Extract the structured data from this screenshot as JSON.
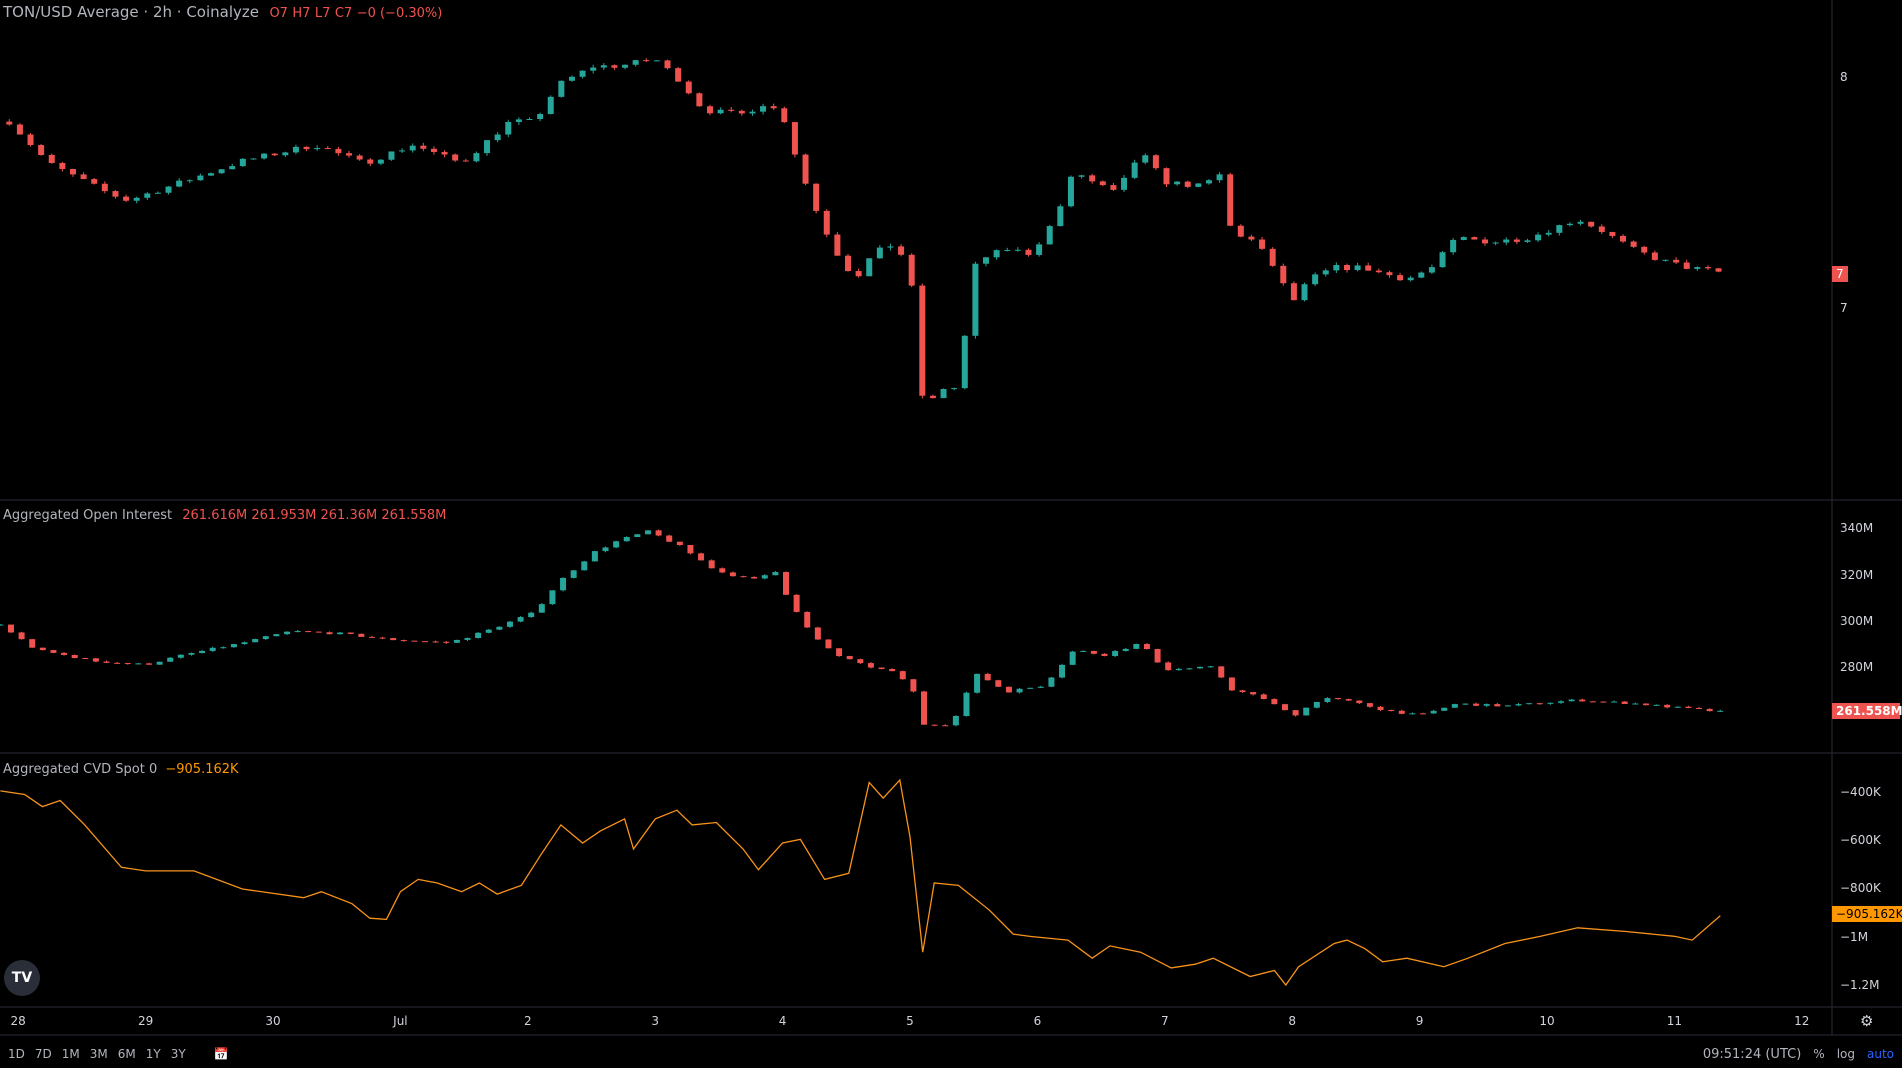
{
  "price_panel": {
    "symbol_title": "TON/USD Average · 2h · Coinalyze",
    "ohlc": {
      "o": "O7",
      "h": "H7",
      "l": "L7",
      "c": "C7",
      "change": "−0 (−0.30%)"
    },
    "axis_labels": [
      "8",
      "7"
    ],
    "last_price_badge": "7"
  },
  "oi_panel": {
    "title": "Aggregated Open Interest",
    "values": [
      "261.616M",
      "261.953M",
      "261.36M",
      "261.558M"
    ],
    "axis_labels": [
      "340M",
      "320M",
      "300M",
      "280M"
    ],
    "last_badge": "261.558M"
  },
  "cvd_panel": {
    "title": "Aggregated CVD Spot 0",
    "value": "−905.162K",
    "axis_labels": [
      "−400K",
      "−600K",
      "−800K",
      "−1M",
      "−1.2M"
    ],
    "last_badge": "−905.162K"
  },
  "date_axis": [
    "28",
    "29",
    "30",
    "Jul",
    "2",
    "3",
    "4",
    "5",
    "6",
    "7",
    "8",
    "9",
    "10",
    "11",
    "12"
  ],
  "toolbar": {
    "ranges": [
      "1D",
      "7D",
      "1M",
      "3M",
      "6M",
      "1Y",
      "3Y"
    ],
    "time": "09:51:24 (UTC)",
    "percent": "%",
    "log": "log",
    "auto": "auto"
  },
  "colors": {
    "up": "#26a69a",
    "down": "#ef5350",
    "cvd": "#f7931a",
    "badge_cvd": "#ff9800"
  },
  "chart_data": [
    {
      "type": "candlestick",
      "title": "TON/USD Average · 2h",
      "x_unit": "days since Jun 28",
      "ylim": [
        6.4,
        8.3
      ],
      "close_path": [
        [
          -0.07,
          7.81
        ],
        [
          0.24,
          7.63
        ],
        [
          0.71,
          7.5
        ],
        [
          0.86,
          7.47
        ],
        [
          1.29,
          7.55
        ],
        [
          1.76,
          7.64
        ],
        [
          2.33,
          7.71
        ],
        [
          2.71,
          7.63
        ],
        [
          3.1,
          7.71
        ],
        [
          3.48,
          7.63
        ],
        [
          3.86,
          7.81
        ],
        [
          4.05,
          7.81
        ],
        [
          4.24,
          7.97
        ],
        [
          4.52,
          8.05
        ],
        [
          4.71,
          8.05
        ],
        [
          5.0,
          8.08
        ],
        [
          5.19,
          7.99
        ],
        [
          5.38,
          7.86
        ],
        [
          5.67,
          7.84
        ],
        [
          5.86,
          7.89
        ],
        [
          6.0,
          7.84
        ],
        [
          6.14,
          7.6
        ],
        [
          6.29,
          7.39
        ],
        [
          6.43,
          7.24
        ],
        [
          6.57,
          7.13
        ],
        [
          6.71,
          7.24
        ],
        [
          6.9,
          7.29
        ],
        [
          7.02,
          7.08
        ],
        [
          7.11,
          6.55
        ],
        [
          7.24,
          6.66
        ],
        [
          7.38,
          6.66
        ],
        [
          7.45,
          6.97
        ],
        [
          7.52,
          7.21
        ],
        [
          7.76,
          7.26
        ],
        [
          7.95,
          7.24
        ],
        [
          8.14,
          7.39
        ],
        [
          8.29,
          7.6
        ],
        [
          8.43,
          7.55
        ],
        [
          8.62,
          7.5
        ],
        [
          8.81,
          7.68
        ],
        [
          9.0,
          7.55
        ],
        [
          9.29,
          7.53
        ],
        [
          9.43,
          7.58
        ],
        [
          9.52,
          7.34
        ],
        [
          9.71,
          7.29
        ],
        [
          9.86,
          7.18
        ],
        [
          10.0,
          7.03
        ],
        [
          10.14,
          7.13
        ],
        [
          10.33,
          7.18
        ],
        [
          10.57,
          7.18
        ],
        [
          10.67,
          7.16
        ],
        [
          10.9,
          7.13
        ],
        [
          11.1,
          7.18
        ],
        [
          11.29,
          7.31
        ],
        [
          11.57,
          7.29
        ],
        [
          11.86,
          7.31
        ],
        [
          12.24,
          7.39
        ],
        [
          12.43,
          7.34
        ],
        [
          12.67,
          7.26
        ],
        [
          12.9,
          7.21
        ],
        [
          13.11,
          7.18
        ],
        [
          13.36,
          7.16
        ]
      ]
    },
    {
      "type": "candlestick",
      "title": "Aggregated Open Interest",
      "unit": "M",
      "ylim": [
        250,
        345
      ],
      "close_path": [
        [
          -0.14,
          298.8
        ],
        [
          0.14,
          288
        ],
        [
          0.62,
          283
        ],
        [
          1.0,
          281.6
        ],
        [
          1.29,
          285.7
        ],
        [
          1.76,
          291
        ],
        [
          2.14,
          296
        ],
        [
          2.52,
          295
        ],
        [
          2.9,
          292.5
        ],
        [
          3.38,
          291
        ],
        [
          3.67,
          296
        ],
        [
          4.05,
          304
        ],
        [
          4.24,
          317
        ],
        [
          4.52,
          330
        ],
        [
          4.71,
          335
        ],
        [
          4.95,
          339
        ],
        [
          5.19,
          332.7
        ],
        [
          5.48,
          322
        ],
        [
          5.76,
          318
        ],
        [
          5.95,
          322
        ],
        [
          6.05,
          309
        ],
        [
          6.24,
          293.6
        ],
        [
          6.43,
          285.7
        ],
        [
          6.62,
          281.6
        ],
        [
          6.9,
          277.9
        ],
        [
          7.02,
          271
        ],
        [
          7.11,
          256
        ],
        [
          7.33,
          256
        ],
        [
          7.52,
          278
        ],
        [
          7.76,
          270
        ],
        [
          8.05,
          272.7
        ],
        [
          8.29,
          288
        ],
        [
          8.52,
          285.7
        ],
        [
          8.81,
          290.9
        ],
        [
          9.0,
          279.5
        ],
        [
          9.38,
          280.5
        ],
        [
          9.52,
          271
        ],
        [
          9.76,
          267.5
        ],
        [
          10.01,
          259.7
        ],
        [
          10.24,
          267.5
        ],
        [
          10.43,
          266
        ],
        [
          10.71,
          262.3
        ],
        [
          11.0,
          259.7
        ],
        [
          11.29,
          264.8
        ],
        [
          11.67,
          263.8
        ],
        [
          12.24,
          266.4
        ],
        [
          12.71,
          264.8
        ],
        [
          13.38,
          261.2
        ]
      ]
    },
    {
      "type": "line",
      "title": "Aggregated CVD Spot",
      "unit": "K",
      "ylim": [
        -1250,
        -350
      ],
      "points": [
        [
          -0.14,
          -390
        ],
        [
          0.05,
          -405
        ],
        [
          0.19,
          -455
        ],
        [
          0.33,
          -430
        ],
        [
          0.52,
          -530
        ],
        [
          0.81,
          -707
        ],
        [
          1.0,
          -722
        ],
        [
          1.38,
          -722
        ],
        [
          1.76,
          -797
        ],
        [
          2.24,
          -833
        ],
        [
          2.38,
          -808
        ],
        [
          2.62,
          -858
        ],
        [
          2.76,
          -918
        ],
        [
          2.89,
          -923
        ],
        [
          3.0,
          -808
        ],
        [
          3.14,
          -757
        ],
        [
          3.29,
          -772
        ],
        [
          3.48,
          -808
        ],
        [
          3.62,
          -772
        ],
        [
          3.76,
          -818
        ],
        [
          3.95,
          -782
        ],
        [
          4.1,
          -657
        ],
        [
          4.26,
          -531
        ],
        [
          4.43,
          -606
        ],
        [
          4.57,
          -556
        ],
        [
          4.76,
          -506
        ],
        [
          4.83,
          -631
        ],
        [
          5.0,
          -506
        ],
        [
          5.17,
          -470
        ],
        [
          5.29,
          -531
        ],
        [
          5.48,
          -521
        ],
        [
          5.69,
          -631
        ],
        [
          5.81,
          -717
        ],
        [
          6.0,
          -606
        ],
        [
          6.14,
          -591
        ],
        [
          6.33,
          -757
        ],
        [
          6.52,
          -732
        ],
        [
          6.68,
          -355
        ],
        [
          6.79,
          -420
        ],
        [
          6.92,
          -345
        ],
        [
          7.0,
          -581
        ],
        [
          7.1,
          -1059
        ],
        [
          7.19,
          -772
        ],
        [
          7.38,
          -782
        ],
        [
          7.62,
          -883
        ],
        [
          7.81,
          -984
        ],
        [
          7.95,
          -994
        ],
        [
          8.24,
          -1009
        ],
        [
          8.43,
          -1084
        ],
        [
          8.57,
          -1033
        ],
        [
          8.81,
          -1059
        ],
        [
          9.05,
          -1124
        ],
        [
          9.24,
          -1109
        ],
        [
          9.38,
          -1084
        ],
        [
          9.67,
          -1160
        ],
        [
          9.86,
          -1135
        ],
        [
          9.95,
          -1195
        ],
        [
          10.05,
          -1119
        ],
        [
          10.33,
          -1023
        ],
        [
          10.43,
          -1009
        ],
        [
          10.57,
          -1044
        ],
        [
          10.71,
          -1099
        ],
        [
          10.9,
          -1084
        ],
        [
          11.19,
          -1119
        ],
        [
          11.38,
          -1084
        ],
        [
          11.67,
          -1023
        ],
        [
          11.95,
          -993
        ],
        [
          12.24,
          -958
        ],
        [
          12.62,
          -973
        ],
        [
          13.0,
          -993
        ],
        [
          13.14,
          -1009
        ],
        [
          13.36,
          -908
        ]
      ]
    }
  ]
}
